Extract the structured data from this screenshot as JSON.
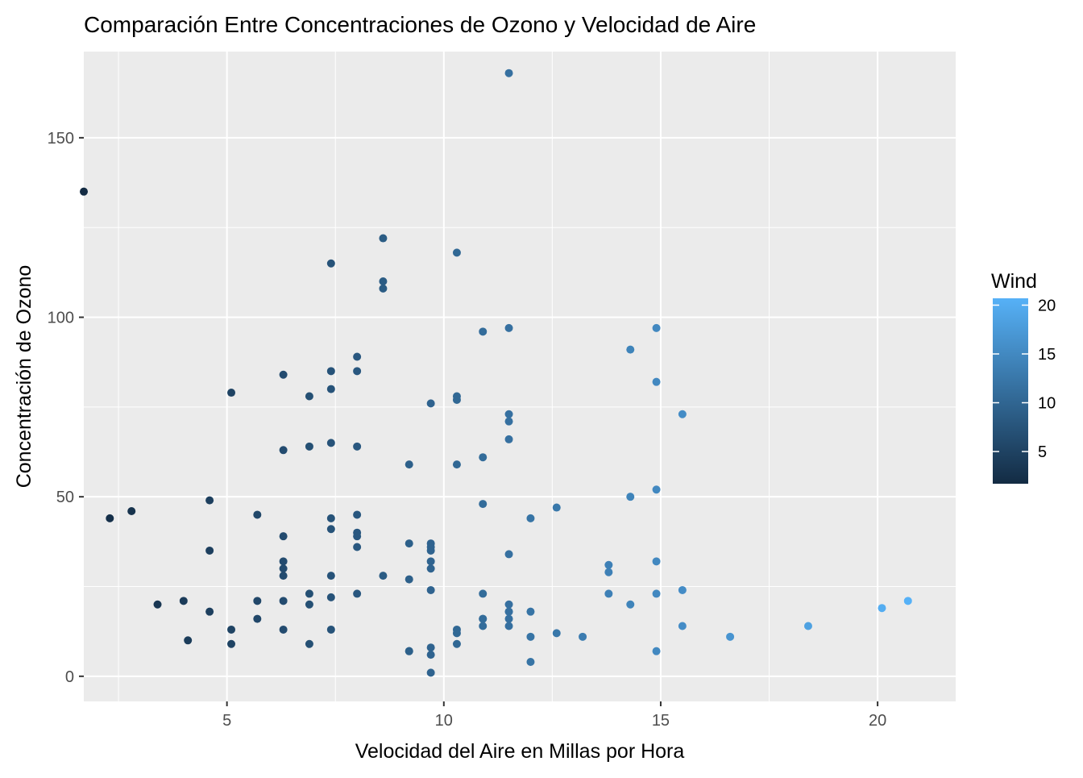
{
  "chart_data": {
    "type": "scatter",
    "title": "Comparación Entre Concentraciones de Ozono y Velocidad de Aire",
    "xlabel": "Velocidad del Aire en Millas por Hora",
    "ylabel": "Concentración de Ozono",
    "xlim": [
      1.7,
      21.8
    ],
    "ylim": [
      -7,
      174
    ],
    "x_ticks": [
      5,
      10,
      15,
      20
    ],
    "x_tick_labels": [
      "5",
      "10",
      "15",
      "20"
    ],
    "y_ticks": [
      0,
      50,
      100,
      150
    ],
    "y_tick_labels": [
      "0",
      "50",
      "100",
      "150"
    ],
    "grid": true,
    "panel_background": "#EBEBEB",
    "legend": {
      "title": "Wind",
      "position": "right",
      "type": "colorbar",
      "range": [
        1.7,
        20.7
      ],
      "ticks": [
        5,
        10,
        15,
        20
      ],
      "tick_labels": [
        "5",
        "10",
        "15",
        "20"
      ],
      "color_low": "#132B43",
      "color_high": "#56B1F7"
    },
    "color_variable": "Wind",
    "points": [
      {
        "x": 7.4,
        "y": 41
      },
      {
        "x": 8.0,
        "y": 36
      },
      {
        "x": 12.6,
        "y": 12
      },
      {
        "x": 11.5,
        "y": 18
      },
      {
        "x": 8.6,
        "y": 28
      },
      {
        "x": 13.8,
        "y": 23
      },
      {
        "x": 20.1,
        "y": 19
      },
      {
        "x": 9.7,
        "y": 8
      },
      {
        "x": 9.2,
        "y": 7
      },
      {
        "x": 10.9,
        "y": 16
      },
      {
        "x": 13.2,
        "y": 11
      },
      {
        "x": 11.5,
        "y": 14
      },
      {
        "x": 12.0,
        "y": 18
      },
      {
        "x": 18.4,
        "y": 14
      },
      {
        "x": 11.5,
        "y": 34
      },
      {
        "x": 9.7,
        "y": 6
      },
      {
        "x": 9.7,
        "y": 30
      },
      {
        "x": 16.6,
        "y": 11
      },
      {
        "x": 9.7,
        "y": 1
      },
      {
        "x": 12.0,
        "y": 11
      },
      {
        "x": 12.0,
        "y": 4
      },
      {
        "x": 14.9,
        "y": 32
      },
      {
        "x": 5.7,
        "y": 45
      },
      {
        "x": 7.4,
        "y": 115
      },
      {
        "x": 9.7,
        "y": 37
      },
      {
        "x": 13.8,
        "y": 29
      },
      {
        "x": 11.5,
        "y": 71
      },
      {
        "x": 8.0,
        "y": 39
      },
      {
        "x": 14.9,
        "y": 23
      },
      {
        "x": 20.7,
        "y": 21
      },
      {
        "x": 9.2,
        "y": 37
      },
      {
        "x": 11.5,
        "y": 20
      },
      {
        "x": 10.3,
        "y": 12
      },
      {
        "x": 6.3,
        "y": 13
      },
      {
        "x": 1.7,
        "y": 135
      },
      {
        "x": 4.6,
        "y": 49
      },
      {
        "x": 6.3,
        "y": 32
      },
      {
        "x": 8.0,
        "y": 64
      },
      {
        "x": 8.0,
        "y": 40
      },
      {
        "x": 10.3,
        "y": 77
      },
      {
        "x": 11.5,
        "y": 97
      },
      {
        "x": 14.9,
        "y": 97
      },
      {
        "x": 8.0,
        "y": 85
      },
      {
        "x": 4.1,
        "y": 10
      },
      {
        "x": 9.2,
        "y": 27
      },
      {
        "x": 9.2,
        "y": 7
      },
      {
        "x": 10.9,
        "y": 48
      },
      {
        "x": 4.6,
        "y": 35
      },
      {
        "x": 10.9,
        "y": 61
      },
      {
        "x": 5.1,
        "y": 79
      },
      {
        "x": 6.3,
        "y": 63
      },
      {
        "x": 5.7,
        "y": 16
      },
      {
        "x": 7.4,
        "y": 80
      },
      {
        "x": 8.6,
        "y": 108
      },
      {
        "x": 14.3,
        "y": 20
      },
      {
        "x": 14.9,
        "y": 52
      },
      {
        "x": 14.9,
        "y": 82
      },
      {
        "x": 14.3,
        "y": 50
      },
      {
        "x": 6.9,
        "y": 64
      },
      {
        "x": 10.3,
        "y": 59
      },
      {
        "x": 6.3,
        "y": 39
      },
      {
        "x": 5.1,
        "y": 9
      },
      {
        "x": 11.5,
        "y": 16
      },
      {
        "x": 6.9,
        "y": 78
      },
      {
        "x": 9.7,
        "y": 35
      },
      {
        "x": 11.5,
        "y": 66
      },
      {
        "x": 8.6,
        "y": 122
      },
      {
        "x": 8.0,
        "y": 89
      },
      {
        "x": 8.6,
        "y": 110
      },
      {
        "x": 12.0,
        "y": 44
      },
      {
        "x": 7.4,
        "y": 28
      },
      {
        "x": 7.4,
        "y": 65
      },
      {
        "x": 7.4,
        "y": 22
      },
      {
        "x": 9.2,
        "y": 59
      },
      {
        "x": 6.9,
        "y": 23
      },
      {
        "x": 13.8,
        "y": 31
      },
      {
        "x": 7.4,
        "y": 44
      },
      {
        "x": 4.0,
        "y": 21
      },
      {
        "x": 10.3,
        "y": 9
      },
      {
        "x": 8.0,
        "y": 45
      },
      {
        "x": 11.5,
        "y": 168
      },
      {
        "x": 11.5,
        "y": 73
      },
      {
        "x": 9.7,
        "y": 76
      },
      {
        "x": 10.3,
        "y": 118
      },
      {
        "x": 6.3,
        "y": 84
      },
      {
        "x": 7.4,
        "y": 85
      },
      {
        "x": 10.9,
        "y": 96
      },
      {
        "x": 10.3,
        "y": 78
      },
      {
        "x": 15.5,
        "y": 73
      },
      {
        "x": 14.3,
        "y": 91
      },
      {
        "x": 12.6,
        "y": 47
      },
      {
        "x": 9.7,
        "y": 32
      },
      {
        "x": 3.4,
        "y": 20
      },
      {
        "x": 8.0,
        "y": 23
      },
      {
        "x": 5.7,
        "y": 21
      },
      {
        "x": 9.7,
        "y": 24
      },
      {
        "x": 2.3,
        "y": 44
      },
      {
        "x": 6.3,
        "y": 21
      },
      {
        "x": 6.3,
        "y": 28
      },
      {
        "x": 6.9,
        "y": 9
      },
      {
        "x": 5.1,
        "y": 13
      },
      {
        "x": 2.8,
        "y": 46
      },
      {
        "x": 4.6,
        "y": 18
      },
      {
        "x": 7.4,
        "y": 13
      },
      {
        "x": 15.5,
        "y": 24
      },
      {
        "x": 10.9,
        "y": 16
      },
      {
        "x": 10.3,
        "y": 13
      },
      {
        "x": 10.9,
        "y": 23
      },
      {
        "x": 9.7,
        "y": 36
      },
      {
        "x": 14.9,
        "y": 7
      },
      {
        "x": 15.5,
        "y": 14
      },
      {
        "x": 6.3,
        "y": 30
      },
      {
        "x": 10.9,
        "y": 14
      },
      {
        "x": 11.5,
        "y": 18
      },
      {
        "x": 6.9,
        "y": 20
      }
    ]
  }
}
